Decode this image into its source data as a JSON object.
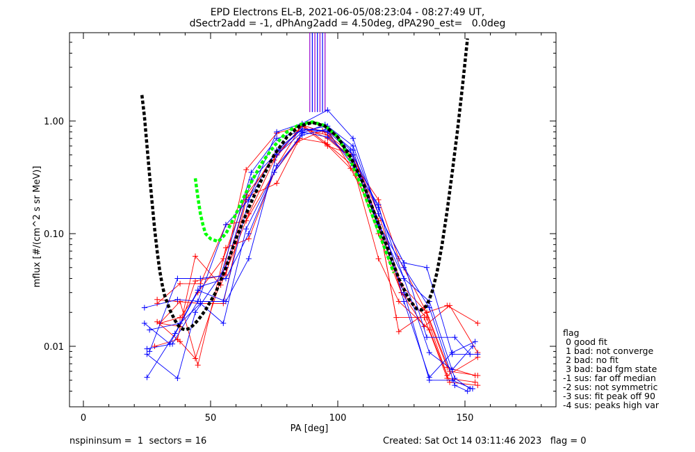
{
  "chart_data": {
    "type": "scatter",
    "title_line1": "EPD Electrons EL-B, 2021-06-05/08:23:04 - 08:27:49 UT,",
    "title_line2": "dSectr2add = -1, dPhAng2add = 4.50deg, dPA290_est=   0.0deg",
    "xlabel": "PA [deg]",
    "ylabel": "mflux [#/(cm^2 s sr MeV)]",
    "xlim": [
      -5,
      185
    ],
    "ylim": [
      0.0033,
      5.4
    ],
    "yscale": "log",
    "x_ticks": [
      0,
      50,
      100,
      150
    ],
    "x_tick_labels": [
      "0",
      "50",
      "100",
      "150"
    ],
    "y_ticks": [
      0.01,
      0.1,
      1.0
    ],
    "y_tick_labels": [
      "0.01",
      "0.10",
      "1.00"
    ],
    "colors": {
      "red": "#ff0000",
      "blue": "#0000ff",
      "black_fit": "#000000",
      "green_fit": "#00ff00",
      "purple": "#9900cc"
    },
    "fit_black": [
      [
        23,
        1.7
      ],
      [
        24,
        1.1
      ],
      [
        25,
        0.6
      ],
      [
        26,
        0.33
      ],
      [
        27,
        0.19
      ],
      [
        28,
        0.11
      ],
      [
        29,
        0.07
      ],
      [
        30,
        0.047
      ],
      [
        31,
        0.035
      ],
      [
        32,
        0.028
      ],
      [
        34,
        0.021
      ],
      [
        36,
        0.017
      ],
      [
        38,
        0.0145
      ],
      [
        40,
        0.014
      ],
      [
        42,
        0.0145
      ],
      [
        45,
        0.017
      ],
      [
        48,
        0.021
      ],
      [
        52,
        0.03
      ],
      [
        56,
        0.05
      ],
      [
        60,
        0.09
      ],
      [
        65,
        0.17
      ],
      [
        70,
        0.3
      ],
      [
        75,
        0.5
      ],
      [
        80,
        0.72
      ],
      [
        85,
        0.9
      ],
      [
        90,
        0.97
      ],
      [
        95,
        0.9
      ],
      [
        100,
        0.72
      ],
      [
        105,
        0.48
      ],
      [
        110,
        0.28
      ],
      [
        115,
        0.14
      ],
      [
        120,
        0.07
      ],
      [
        124,
        0.04
      ],
      [
        128,
        0.026
      ],
      [
        131,
        0.0215
      ],
      [
        133,
        0.021
      ],
      [
        135,
        0.023
      ],
      [
        137,
        0.03
      ],
      [
        139,
        0.045
      ],
      [
        141,
        0.08
      ],
      [
        143,
        0.16
      ],
      [
        145,
        0.35
      ],
      [
        147,
        0.8
      ],
      [
        149,
        2.0
      ],
      [
        150.5,
        4.2
      ],
      [
        151,
        5.4
      ]
    ],
    "fit_green": [
      [
        44,
        0.31
      ],
      [
        45,
        0.21
      ],
      [
        46,
        0.15
      ],
      [
        47,
        0.12
      ],
      [
        48,
        0.1
      ],
      [
        50,
        0.09
      ],
      [
        53,
        0.085
      ],
      [
        56,
        0.1
      ],
      [
        60,
        0.15
      ],
      [
        65,
        0.26
      ],
      [
        70,
        0.42
      ],
      [
        75,
        0.6
      ],
      [
        80,
        0.8
      ],
      [
        85,
        0.93
      ],
      [
        90,
        0.98
      ],
      [
        95,
        0.91
      ],
      [
        100,
        0.72
      ],
      [
        105,
        0.45
      ],
      [
        110,
        0.24
      ],
      [
        115,
        0.12
      ],
      [
        120,
        0.06
      ],
      [
        122,
        0.045
      ]
    ],
    "purple_lines_x": [
      89,
      90,
      91,
      92,
      93,
      94,
      95
    ],
    "purple_lines_range": [
      1.2,
      5.4
    ],
    "series": [
      {
        "color": "red",
        "points": [
          [
            29,
            0.026
          ],
          [
            37,
            0.025
          ],
          [
            46,
            0.024
          ],
          [
            55,
            0.024
          ],
          [
            64,
            0.2
          ],
          [
            76,
            0.55
          ],
          [
            86,
            0.85
          ],
          [
            96,
            0.75
          ],
          [
            106,
            0.5
          ],
          [
            116,
            0.15
          ],
          [
            125,
            0.035
          ],
          [
            135,
            0.02
          ],
          [
            144,
            0.006
          ],
          [
            155,
            0.0055
          ]
        ]
      },
      {
        "color": "red",
        "points": [
          [
            30,
            0.016
          ],
          [
            38,
            0.018
          ],
          [
            45,
            0.03
          ],
          [
            55,
            0.06
          ],
          [
            64,
            0.22
          ],
          [
            76,
            0.5
          ],
          [
            86,
            0.9
          ],
          [
            96,
            0.7
          ],
          [
            106,
            0.45
          ],
          [
            116,
            0.13
          ],
          [
            125,
            0.03
          ],
          [
            135,
            0.018
          ],
          [
            144,
            0.0048
          ],
          [
            155,
            0.0045
          ]
        ]
      },
      {
        "color": "red",
        "points": [
          [
            29,
            0.0165
          ],
          [
            38,
            0.011
          ],
          [
            44,
            0.0078
          ],
          [
            55,
            0.045
          ],
          [
            64,
            0.37
          ],
          [
            76,
            0.78
          ],
          [
            86,
            0.9
          ],
          [
            96,
            0.6
          ],
          [
            106,
            0.5
          ],
          [
            116,
            0.13
          ],
          [
            124,
            0.0135
          ],
          [
            135,
            0.02
          ],
          [
            143,
            0.023
          ],
          [
            155,
            0.016
          ]
        ]
      },
      {
        "color": "red",
        "points": [
          [
            30,
            0.016
          ],
          [
            38,
            0.025
          ],
          [
            45,
            0.0068
          ],
          [
            56,
            0.075
          ],
          [
            65,
            0.09
          ],
          [
            76,
            0.4
          ],
          [
            86,
            0.92
          ],
          [
            97,
            0.77
          ],
          [
            107,
            0.33
          ],
          [
            116,
            0.06
          ],
          [
            124,
            0.025
          ],
          [
            136,
            0.014
          ],
          [
            143,
            0.0055
          ],
          [
            155,
            0.008
          ]
        ]
      },
      {
        "color": "red",
        "points": [
          [
            28,
            0.01
          ],
          [
            37,
            0.0115
          ],
          [
            44,
            0.063
          ],
          [
            54,
            0.035
          ],
          [
            65,
            0.15
          ],
          [
            75,
            0.45
          ],
          [
            86,
            0.93
          ],
          [
            96,
            0.62
          ],
          [
            106,
            0.4
          ],
          [
            116,
            0.1
          ],
          [
            125,
            0.03
          ],
          [
            134,
            0.015
          ],
          [
            144,
            0.023
          ],
          [
            155,
            0.0088
          ]
        ]
      },
      {
        "color": "red",
        "points": [
          [
            29,
            0.024
          ],
          [
            38,
            0.036
          ],
          [
            46,
            0.036
          ],
          [
            56,
            0.12
          ],
          [
            64,
            0.13
          ],
          [
            75,
            0.35
          ],
          [
            84,
            0.65
          ],
          [
            94,
            0.82
          ],
          [
            104,
            0.5
          ],
          [
            116,
            0.2
          ],
          [
            124,
            0.06
          ],
          [
            134,
            0.022
          ],
          [
            143,
            0.0065
          ],
          [
            154,
            0.0055
          ]
        ]
      },
      {
        "color": "red",
        "points": [
          [
            30,
            0.016
          ],
          [
            38,
            0.015
          ],
          [
            44,
            0.038
          ],
          [
            56,
            0.043
          ],
          [
            64,
            0.21
          ],
          [
            76,
            0.28
          ],
          [
            85,
            0.7
          ],
          [
            95,
            0.64
          ],
          [
            105,
            0.38
          ],
          [
            116,
            0.13
          ],
          [
            123,
            0.018
          ],
          [
            134,
            0.018
          ],
          [
            143,
            0.0052
          ],
          [
            154,
            0.0048
          ]
        ]
      },
      {
        "color": "blue",
        "points": [
          [
            24,
            0.022
          ],
          [
            37,
            0.026
          ],
          [
            46,
            0.025
          ],
          [
            55,
            0.025
          ],
          [
            65,
            0.2
          ],
          [
            76,
            0.8
          ],
          [
            86,
            0.95
          ],
          [
            96,
            1.25
          ],
          [
            106,
            0.7
          ],
          [
            116,
            0.15
          ],
          [
            126,
            0.055
          ],
          [
            135,
            0.05
          ],
          [
            145,
            0.0085
          ],
          [
            155,
            0.0085
          ]
        ]
      },
      {
        "color": "blue",
        "points": [
          [
            25,
            0.0095
          ],
          [
            35,
            0.0105
          ],
          [
            45,
            0.025
          ],
          [
            56,
            0.12
          ],
          [
            65,
            0.2
          ],
          [
            76,
            0.55
          ],
          [
            86,
            0.85
          ],
          [
            96,
            0.8
          ],
          [
            106,
            0.4
          ],
          [
            116,
            0.18
          ],
          [
            126,
            0.025
          ],
          [
            136,
            0.0053
          ],
          [
            145,
            0.0088
          ],
          [
            154,
            0.011
          ]
        ]
      },
      {
        "color": "blue",
        "points": [
          [
            25,
            0.0053
          ],
          [
            36,
            0.013
          ],
          [
            45,
            0.0315
          ],
          [
            56,
            0.025
          ],
          [
            65,
            0.06
          ],
          [
            76,
            0.5
          ],
          [
            86,
            0.8
          ],
          [
            96,
            0.72
          ],
          [
            106,
            0.45
          ],
          [
            116,
            0.12
          ],
          [
            126,
            0.05
          ],
          [
            136,
            0.022
          ],
          [
            146,
            0.0045
          ],
          [
            151,
            0.004
          ]
        ]
      },
      {
        "color": "blue",
        "points": [
          [
            24,
            0.016
          ],
          [
            34,
            0.0105
          ],
          [
            46,
            0.034
          ],
          [
            56,
            0.04
          ],
          [
            65,
            0.1
          ],
          [
            76,
            0.4
          ],
          [
            86,
            0.75
          ],
          [
            96,
            0.85
          ],
          [
            106,
            0.55
          ],
          [
            116,
            0.12
          ],
          [
            126,
            0.04
          ],
          [
            136,
            0.0088
          ],
          [
            145,
            0.0062
          ],
          [
            153,
            0.01
          ]
        ]
      },
      {
        "color": "blue",
        "points": [
          [
            25,
            0.0085
          ],
          [
            37,
            0.0052
          ],
          [
            44,
            0.02
          ],
          [
            56,
            0.05
          ],
          [
            66,
            0.3
          ],
          [
            77,
            0.55
          ],
          [
            86,
            0.85
          ],
          [
            96,
            0.82
          ],
          [
            106,
            0.5
          ],
          [
            116,
            0.17
          ],
          [
            126,
            0.04
          ],
          [
            136,
            0.025
          ],
          [
            146,
            0.0052
          ],
          [
            152,
            0.0042
          ]
        ]
      },
      {
        "color": "blue",
        "points": [
          [
            26,
            0.009
          ],
          [
            37,
            0.04
          ],
          [
            46,
            0.04
          ],
          [
            54,
            0.042
          ],
          [
            66,
            0.35
          ],
          [
            76,
            0.7
          ],
          [
            86,
            0.82
          ],
          [
            96,
            0.9
          ],
          [
            106,
            0.6
          ],
          [
            116,
            0.15
          ],
          [
            126,
            0.055
          ],
          [
            135,
            0.012
          ],
          [
            146,
            0.012
          ],
          [
            152,
            0.0085
          ]
        ]
      },
      {
        "color": "blue",
        "points": [
          [
            26,
            0.014
          ],
          [
            38,
            0.016
          ],
          [
            46,
            0.024
          ],
          [
            55,
            0.016
          ],
          [
            64,
            0.11
          ],
          [
            75,
            0.35
          ],
          [
            86,
            0.78
          ],
          [
            95,
            0.93
          ],
          [
            105,
            0.55
          ],
          [
            115,
            0.13
          ],
          [
            126,
            0.03
          ],
          [
            136,
            0.005
          ],
          [
            145,
            0.005
          ],
          [
            153,
            0.0042
          ]
        ]
      }
    ]
  },
  "legend": {
    "heading": "flag",
    "items": [
      " 0 good fit",
      " 1 bad: not converge",
      " 2 bad: no fit",
      " 3 bad: bad fgm state",
      "-1 sus: far off median",
      "-2 sus: not symmetric",
      "-3 sus: fit peak off 90",
      "-4 sus: peaks high var"
    ]
  },
  "footer": {
    "left": "nspininsum =  1  sectors = 16",
    "right": "Created: Sat Oct 14 03:11:46 2023   flag = 0"
  }
}
